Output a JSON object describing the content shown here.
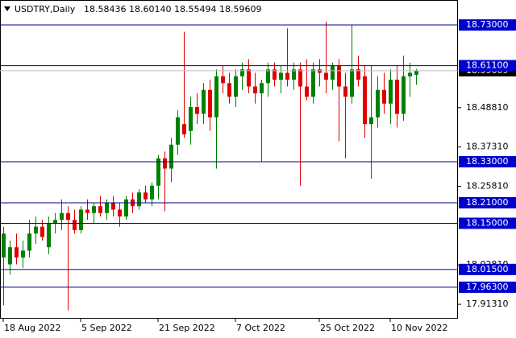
{
  "chart_data": {
    "type": "candlestick",
    "title": "USDTRY,Daily",
    "header_values": [
      "18.58436",
      "18.60140",
      "18.55494",
      "18.59609"
    ],
    "categories": [
      "18 Aug 2022",
      null,
      null,
      null,
      null,
      null,
      null,
      null,
      null,
      null,
      null,
      null,
      "5 Sep 2022",
      null,
      null,
      null,
      null,
      null,
      null,
      null,
      null,
      null,
      null,
      null,
      "21 Sep 2022",
      null,
      null,
      null,
      null,
      null,
      null,
      null,
      null,
      null,
      null,
      null,
      "7 Oct 2022",
      null,
      null,
      null,
      null,
      null,
      null,
      null,
      null,
      null,
      null,
      null,
      null,
      "25 Oct 2022",
      null,
      null,
      null,
      null,
      null,
      null,
      null,
      null,
      null,
      null,
      "10 Nov 2022",
      null,
      null,
      null,
      null
    ],
    "open": [
      18.05,
      18.03,
      18.08,
      18.05,
      18.07,
      18.12,
      18.14,
      18.08,
      18.15,
      18.16,
      18.18,
      18.16,
      18.13,
      18.19,
      18.18,
      18.2,
      18.18,
      18.21,
      18.19,
      18.17,
      18.22,
      18.2,
      18.24,
      18.22,
      18.26,
      18.34,
      18.31,
      18.38,
      18.44,
      18.42,
      18.49,
      18.47,
      18.54,
      18.46,
      18.58,
      18.56,
      18.52,
      18.58,
      18.6,
      18.55,
      18.53,
      18.56,
      18.6,
      18.57,
      18.59,
      18.57,
      18.6,
      18.55,
      18.52,
      18.6,
      18.59,
      18.57,
      18.61,
      18.55,
      18.52,
      18.6,
      18.58,
      18.44,
      18.46,
      18.54,
      18.5,
      18.57,
      18.47,
      18.58,
      18.58436
    ],
    "high": [
      18.14,
      18.1,
      18.12,
      18.1,
      18.16,
      18.17,
      18.16,
      18.17,
      18.18,
      18.22,
      18.2,
      18.19,
      18.2,
      18.22,
      18.21,
      18.23,
      18.22,
      18.23,
      18.21,
      18.23,
      18.24,
      18.25,
      18.26,
      18.27,
      18.35,
      18.36,
      18.4,
      18.48,
      18.71,
      18.52,
      18.53,
      18.56,
      18.57,
      18.6,
      18.61,
      18.59,
      18.6,
      18.62,
      18.63,
      18.59,
      18.57,
      18.62,
      18.62,
      18.61,
      18.72,
      18.62,
      18.62,
      18.63,
      18.62,
      18.63,
      18.74,
      18.62,
      18.63,
      18.59,
      18.73,
      18.64,
      18.61,
      18.61,
      18.58,
      18.59,
      18.6,
      18.61,
      18.64,
      18.62,
      18.6014
    ],
    "low": [
      17.91,
      18.0,
      18.03,
      18.02,
      18.05,
      18.09,
      18.1,
      18.06,
      18.12,
      18.13,
      17.895,
      18.12,
      18.12,
      18.16,
      18.15,
      18.17,
      18.16,
      18.17,
      18.14,
      18.16,
      18.18,
      18.19,
      18.21,
      18.2,
      18.22,
      18.185,
      18.27,
      18.35,
      18.4,
      18.38,
      18.44,
      18.44,
      18.42,
      18.31,
      18.53,
      18.5,
      18.49,
      18.54,
      18.53,
      18.5,
      18.33,
      18.52,
      18.55,
      18.53,
      18.55,
      18.54,
      18.26,
      18.51,
      18.5,
      18.55,
      18.53,
      18.54,
      18.39,
      18.34,
      18.5,
      18.55,
      18.4,
      18.28,
      18.43,
      18.47,
      18.44,
      18.43,
      18.45,
      18.52,
      18.55494
    ],
    "close": [
      18.12,
      18.08,
      18.05,
      18.07,
      18.12,
      18.14,
      18.11,
      18.15,
      18.16,
      18.18,
      18.16,
      18.13,
      18.19,
      18.18,
      18.2,
      18.18,
      18.21,
      18.19,
      18.17,
      18.22,
      18.2,
      18.24,
      18.22,
      18.26,
      18.34,
      18.31,
      18.38,
      18.46,
      18.41,
      18.49,
      18.47,
      18.54,
      18.46,
      18.58,
      18.56,
      18.52,
      18.58,
      18.6,
      18.55,
      18.53,
      18.56,
      18.6,
      18.57,
      18.59,
      18.57,
      18.6,
      18.55,
      18.52,
      18.6,
      18.59,
      18.57,
      18.61,
      18.55,
      18.52,
      18.6,
      18.57,
      18.44,
      18.46,
      18.54,
      18.5,
      18.57,
      18.47,
      18.58,
      18.59,
      18.59609
    ],
    "up_color": "#008000",
    "down_color": "#e00000",
    "ylim": [
      17.871,
      18.803
    ],
    "yticks": [
      {
        "value": 18.4881,
        "label": "18.48810"
      },
      {
        "value": 18.3731,
        "label": "18.37310"
      },
      {
        "value": 18.2581,
        "label": "18.25810"
      },
      {
        "value": 18.0281,
        "label": "18.02810"
      },
      {
        "value": 17.9131,
        "label": "17.91310"
      }
    ],
    "levels": [
      {
        "value": 18.73,
        "label": "18.73000"
      },
      {
        "value": 18.611,
        "label": "18.61100"
      },
      {
        "value": 18.33,
        "label": "18.33000"
      },
      {
        "value": 18.21,
        "label": "18.21000"
      },
      {
        "value": 18.15,
        "label": "18.15000"
      },
      {
        "value": 18.015,
        "label": "18.01500"
      },
      {
        "value": 17.963,
        "label": "17.96300"
      }
    ],
    "level_color": "#00008b",
    "level_label_color": "#0000cd",
    "current_price": {
      "value": 18.59609,
      "label": "18.59609"
    }
  }
}
